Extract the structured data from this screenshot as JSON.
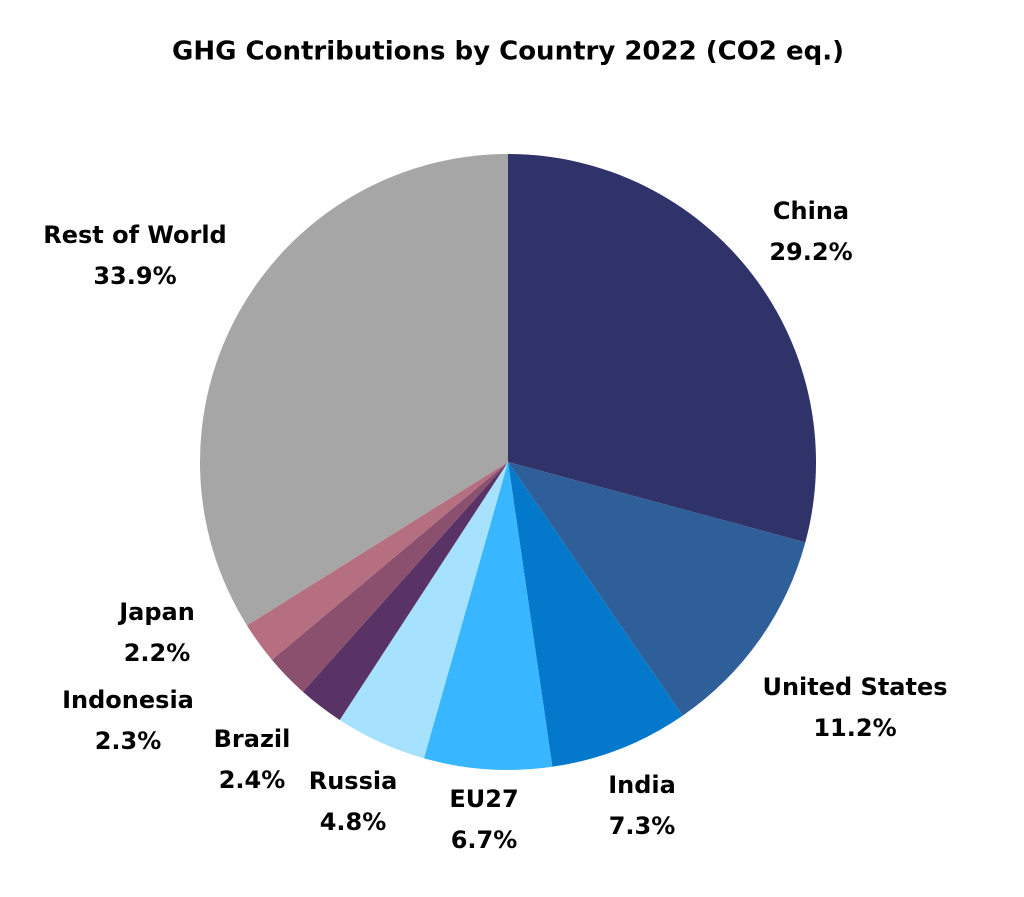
{
  "chart_data": {
    "type": "pie",
    "title": "GHG Contributions by Country 2022 (CO2 eq.)",
    "categories": [
      "China",
      "United States",
      "India",
      "EU27",
      "Russia",
      "Brazil",
      "Indonesia",
      "Japan",
      "Rest of World"
    ],
    "values": [
      29.2,
      11.2,
      7.3,
      6.7,
      4.8,
      2.4,
      2.3,
      2.2,
      33.9
    ],
    "value_labels": [
      "29.2%",
      "11.2%",
      "7.3%",
      "6.7%",
      "4.8%",
      "2.4%",
      "2.3%",
      "2.2%",
      "33.9%"
    ],
    "colors": [
      "#2f3369",
      "#2e5f99",
      "#0479cc",
      "#38b6ff",
      "#a6e1fe",
      "#5a3366",
      "#8a506e",
      "#b66e81",
      "#a6a6a6"
    ]
  }
}
